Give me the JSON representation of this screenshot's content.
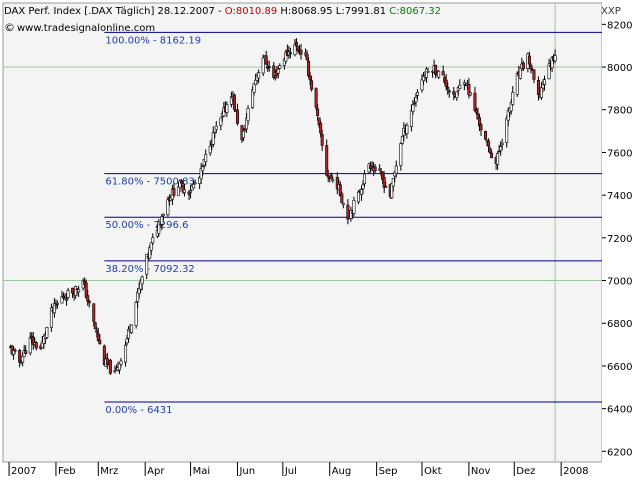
{
  "header": {
    "title_prefix": "DAX Perf. Index [.DAX  Täglich] 28.12.2007 - ",
    "open_text": "O:8010.89",
    "high_text": " H:8068.95",
    "low_text": " L:7991.81",
    "close_text": " C:8067.32",
    "source": "www.tradesignalonline.com",
    "symbol": "XXP"
  },
  "colors": {
    "up": "#ffffff",
    "down": "#b22222",
    "open": "#c00000",
    "close": "#008000",
    "fib": "#00008b",
    "label": "#1f3ea8"
  },
  "chart_data": {
    "type": "candlestick",
    "ylim": [
      6150,
      8300
    ],
    "yticks": [
      6200,
      6400,
      6600,
      6800,
      7000,
      7200,
      7400,
      7600,
      7800,
      8000,
      8200
    ],
    "ytick_labels": [
      "6200",
      "6400",
      "6600",
      "6800",
      "7000",
      "7200",
      "7400",
      "7600",
      "7800",
      "8000",
      "8200"
    ],
    "x_range": [
      "2006-12-28",
      "2008-01-28"
    ],
    "month_ticks": [
      "2007-01-01",
      "2007-02-01",
      "2007-03-01",
      "2007-04-01",
      "2007-05-01",
      "2007-06-01",
      "2007-07-01",
      "2007-08-01",
      "2007-09-01",
      "2007-10-01",
      "2007-11-01",
      "2007-12-01",
      "2008-01-01"
    ],
    "month_labels": [
      "2007",
      "Feb",
      "Mrz",
      "Apr",
      "Mai",
      "Jun",
      "Jul",
      "Aug",
      "Sep",
      "Okt",
      "Nov",
      "Dez",
      "2008"
    ],
    "gridlines": [
      7000,
      8000
    ],
    "current_date": "2007-12-28",
    "fibonacci": [
      {
        "label": "100.00% - 8162.19",
        "value": 8162.19
      },
      {
        "label": "61.80% - 7500.83",
        "value": 7500.83
      },
      {
        "label": "50.00% - 7296.6",
        "value": 7296.6
      },
      {
        "label": "38.20% - 7092.32",
        "value": 7092.32
      },
      {
        "label": "0.00% - 6431",
        "value": 6431
      }
    ],
    "closes": [
      {
        "date": "2007-01-02",
        "close": 6680
      },
      {
        "date": "2007-01-08",
        "close": 6620
      },
      {
        "date": "2007-01-15",
        "close": 6720
      },
      {
        "date": "2007-01-22",
        "close": 6680
      },
      {
        "date": "2007-01-29",
        "close": 6850
      },
      {
        "date": "2007-02-05",
        "close": 6920
      },
      {
        "date": "2007-02-12",
        "close": 6950
      },
      {
        "date": "2007-02-19",
        "close": 6990
      },
      {
        "date": "2007-02-26",
        "close": 6800
      },
      {
        "date": "2007-03-05",
        "close": 6620
      },
      {
        "date": "2007-03-12",
        "close": 6560
      },
      {
        "date": "2007-03-19",
        "close": 6700
      },
      {
        "date": "2007-03-26",
        "close": 6900
      },
      {
        "date": "2007-04-02",
        "close": 7100
      },
      {
        "date": "2007-04-09",
        "close": 7250
      },
      {
        "date": "2007-04-16",
        "close": 7380
      },
      {
        "date": "2007-04-23",
        "close": 7450
      },
      {
        "date": "2007-04-30",
        "close": 7420
      },
      {
        "date": "2007-05-07",
        "close": 7480
      },
      {
        "date": "2007-05-14",
        "close": 7650
      },
      {
        "date": "2007-05-21",
        "close": 7750
      },
      {
        "date": "2007-05-28",
        "close": 7880
      },
      {
        "date": "2007-06-04",
        "close": 7650
      },
      {
        "date": "2007-06-11",
        "close": 7900
      },
      {
        "date": "2007-06-18",
        "close": 8050
      },
      {
        "date": "2007-06-25",
        "close": 7950
      },
      {
        "date": "2007-07-02",
        "close": 8050
      },
      {
        "date": "2007-07-09",
        "close": 8100
      },
      {
        "date": "2007-07-16",
        "close": 8050
      },
      {
        "date": "2007-07-23",
        "close": 7800
      },
      {
        "date": "2007-07-30",
        "close": 7500
      },
      {
        "date": "2007-08-06",
        "close": 7450
      },
      {
        "date": "2007-08-13",
        "close": 7300
      },
      {
        "date": "2007-08-20",
        "close": 7400
      },
      {
        "date": "2007-08-27",
        "close": 7550
      },
      {
        "date": "2007-09-03",
        "close": 7500
      },
      {
        "date": "2007-09-10",
        "close": 7400
      },
      {
        "date": "2007-09-17",
        "close": 7650
      },
      {
        "date": "2007-09-24",
        "close": 7800
      },
      {
        "date": "2007-10-01",
        "close": 7950
      },
      {
        "date": "2007-10-08",
        "close": 8000
      },
      {
        "date": "2007-10-15",
        "close": 7950
      },
      {
        "date": "2007-10-22",
        "close": 7850
      },
      {
        "date": "2007-10-29",
        "close": 7950
      },
      {
        "date": "2007-11-05",
        "close": 7800
      },
      {
        "date": "2007-11-12",
        "close": 7650
      },
      {
        "date": "2007-11-19",
        "close": 7550
      },
      {
        "date": "2007-11-26",
        "close": 7750
      },
      {
        "date": "2007-12-03",
        "close": 7950
      },
      {
        "date": "2007-12-10",
        "close": 8050
      },
      {
        "date": "2007-12-17",
        "close": 7850
      },
      {
        "date": "2007-12-21",
        "close": 7950
      },
      {
        "date": "2007-12-28",
        "close": 8067
      }
    ]
  }
}
